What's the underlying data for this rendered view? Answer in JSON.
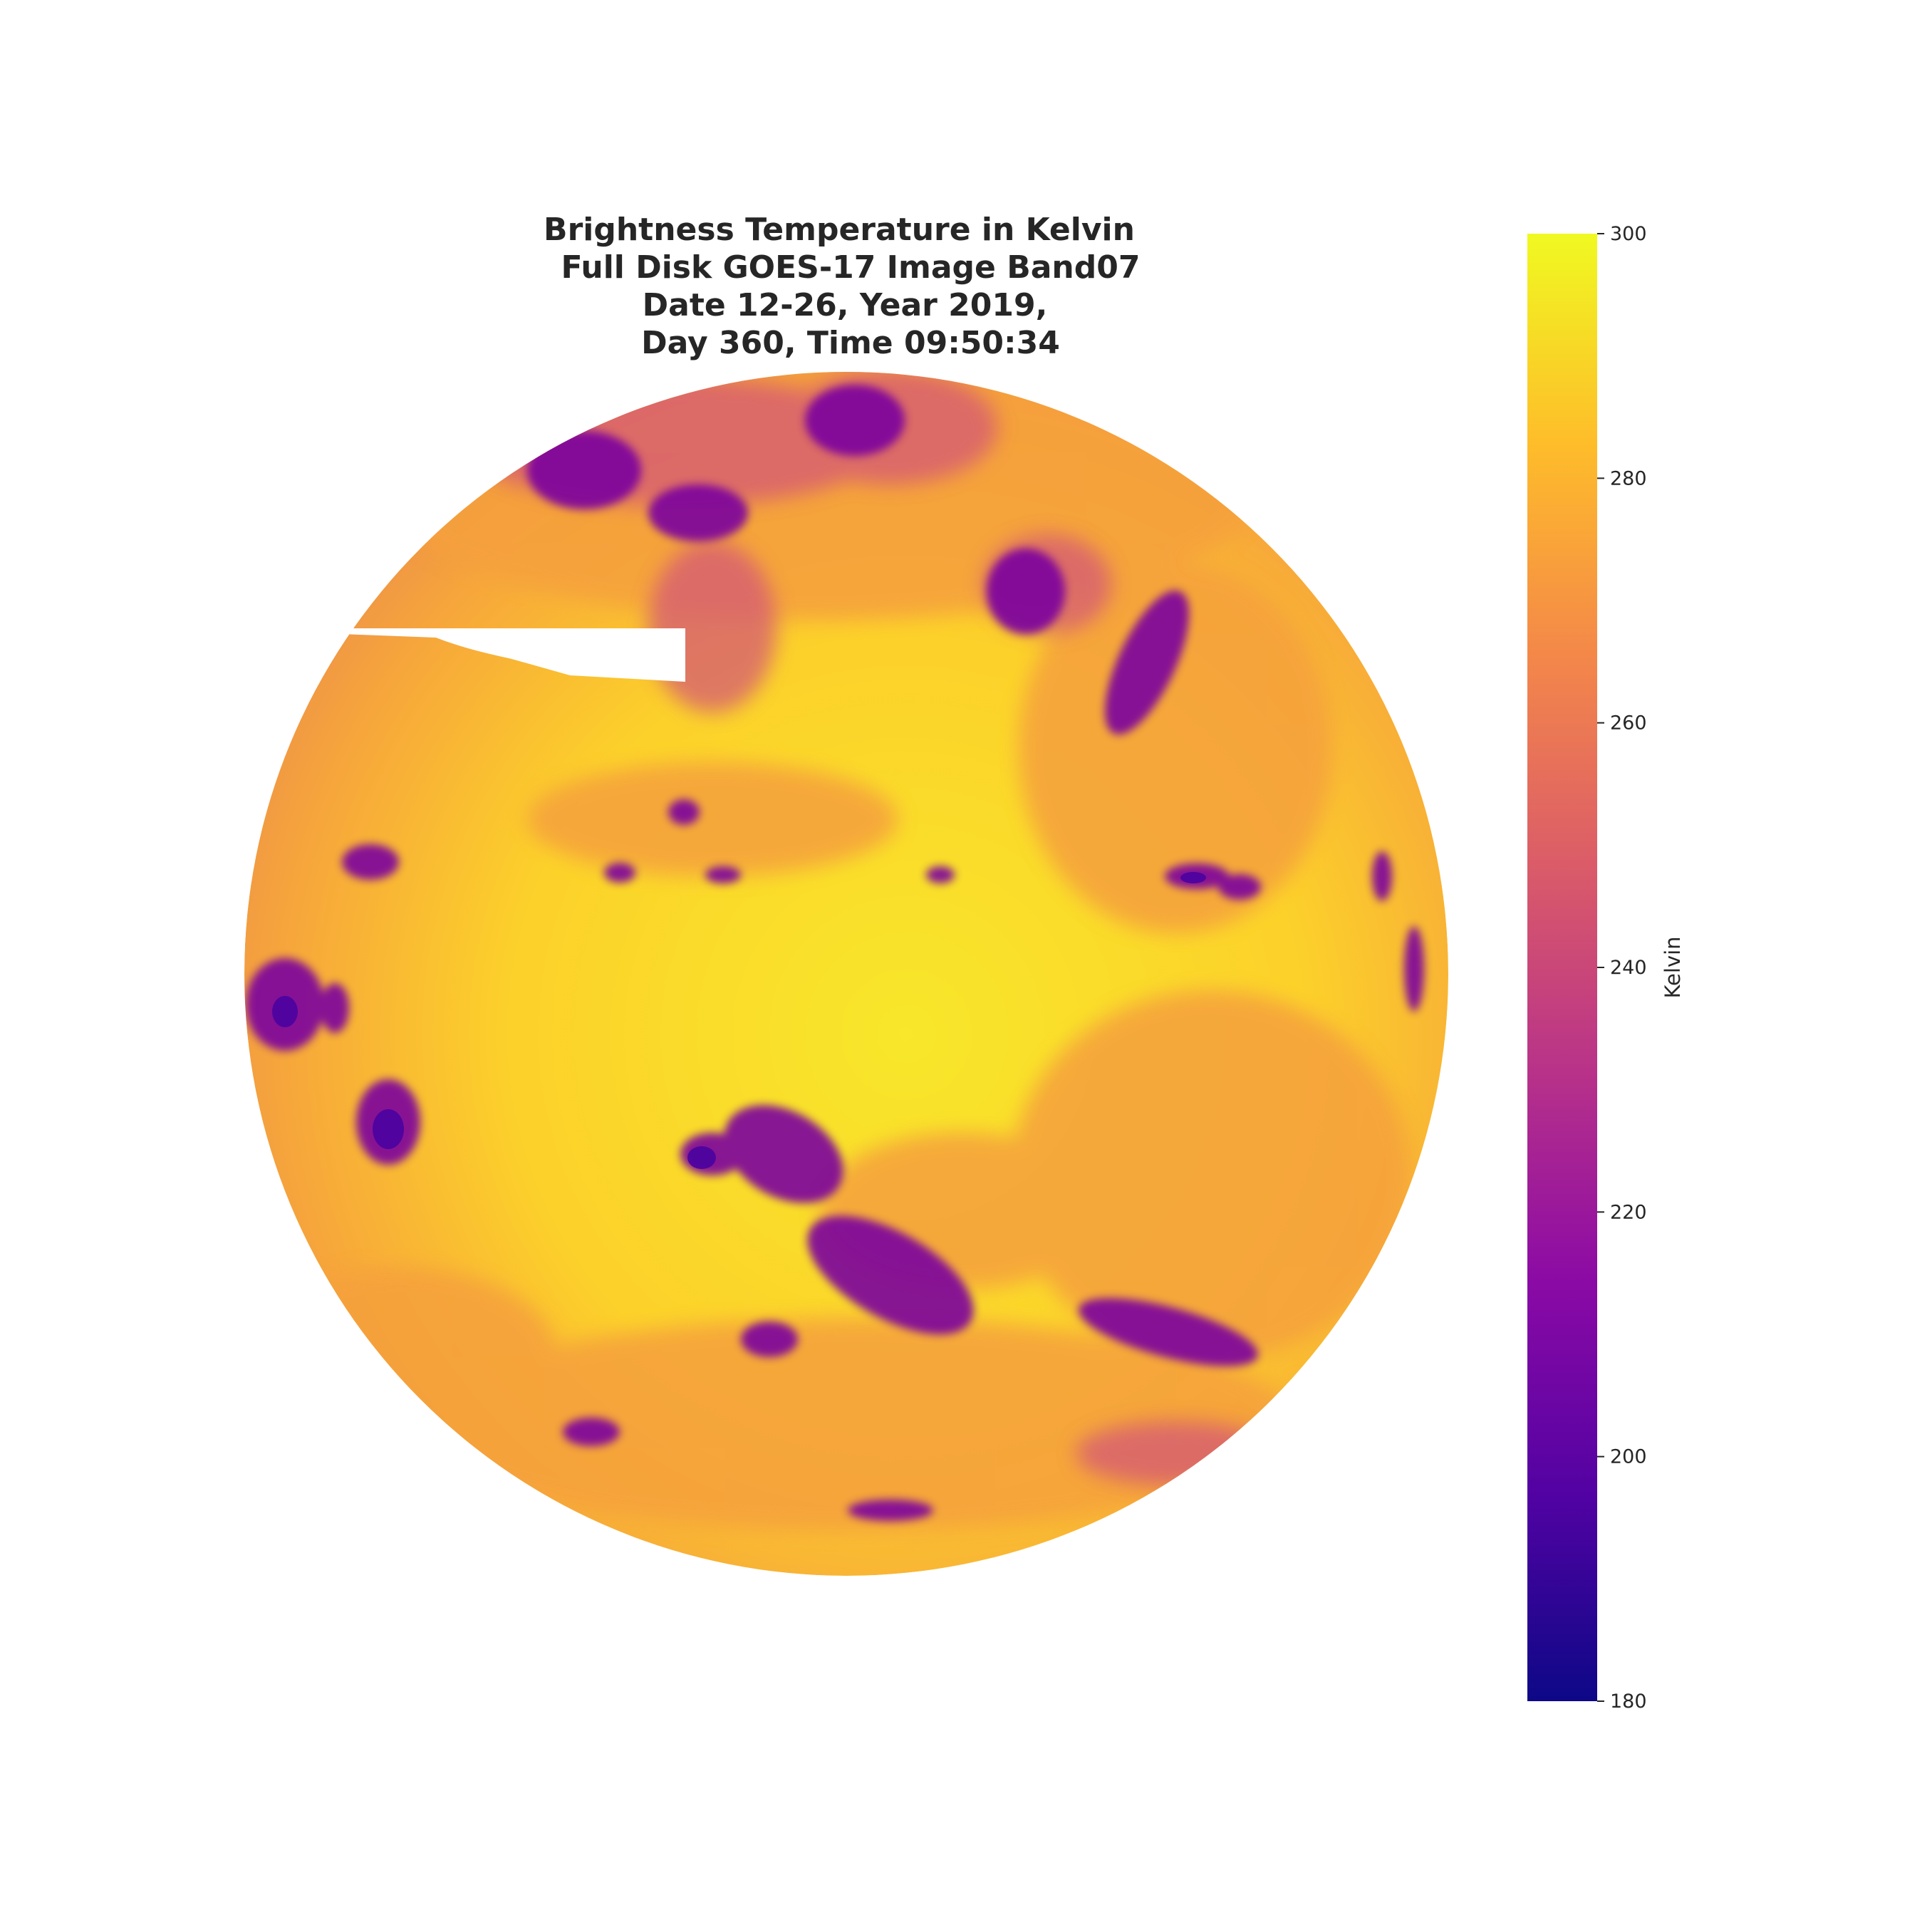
{
  "title_lines": [
    "Brightness Temperature in Kelvin",
    "Full Disk GOES-17 Image Band07",
    "Date 12-26, Year 2019,",
    "Day 360, Time 09:50:34"
  ],
  "colorbar": {
    "label": "Kelvin",
    "colormap": "plasma",
    "range": [
      180,
      300
    ],
    "ticks": [
      "180",
      "200",
      "220",
      "240",
      "260",
      "280",
      "300"
    ],
    "colors": [
      "#0d0887",
      "#5302a3",
      "#8b0aa5",
      "#b83289",
      "#db5c68",
      "#f48849",
      "#febd2a",
      "#f0f921"
    ]
  },
  "image": {
    "description_colors": {
      "warm_surface": "#fcce25",
      "mid": "#f7a23a",
      "cold_cloud": "#6a00a8"
    }
  }
}
